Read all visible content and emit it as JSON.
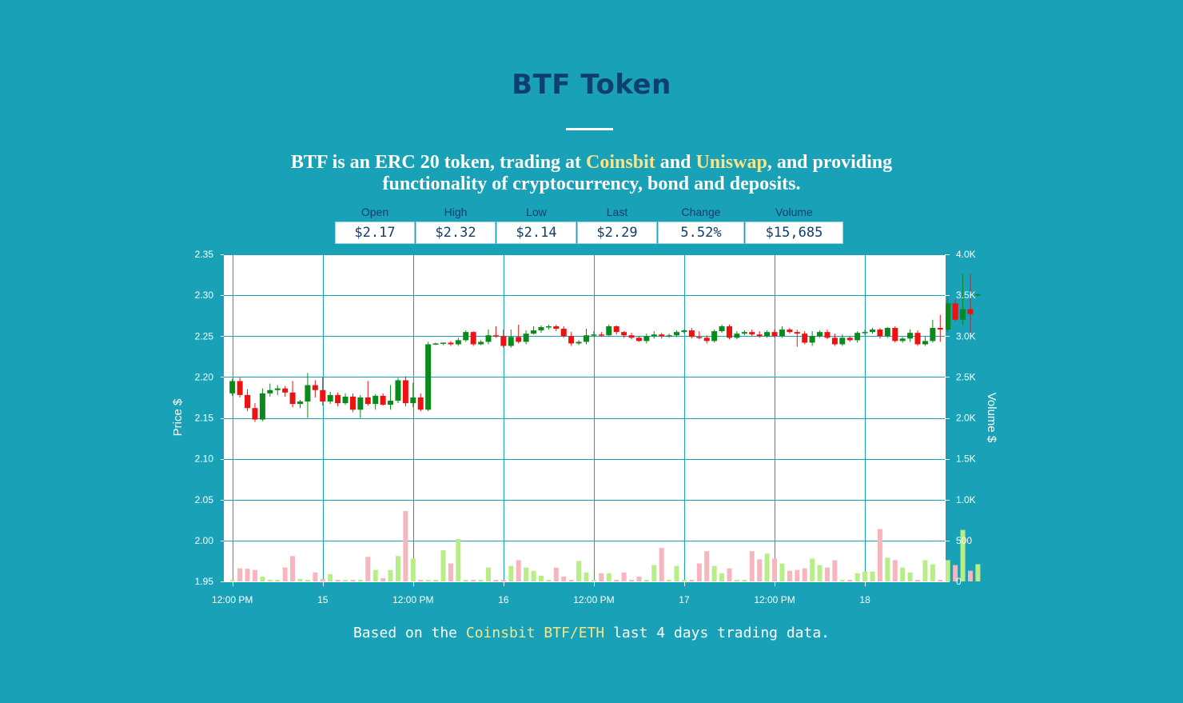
{
  "page": {
    "title": "BTF Token",
    "subtitle": {
      "line1_a": "BTF is an ERC 20 token, trading at ",
      "link1": "Coinsbit",
      "line1_b": " and ",
      "link2": "Uniswap",
      "line1_c": ", and providing",
      "line2": "functionality of cryptocurrency, bond and deposits."
    },
    "footer": {
      "pre": "Based on the ",
      "link": "Coinsbit BTF/ETH",
      "post": " last 4 days trading data."
    }
  },
  "stats": [
    {
      "label": "Open",
      "value": "$2.17"
    },
    {
      "label": "High",
      "value": "$2.32"
    },
    {
      "label": "Low",
      "value": "$2.14"
    },
    {
      "label": "Last",
      "value": "$2.29"
    },
    {
      "label": "Change",
      "value": "5.52%"
    },
    {
      "label": "Volume",
      "value": "$15,685"
    }
  ],
  "colors": {
    "background": "#19a1b8",
    "title": "#0f3f6e",
    "highlight": "#f7e58a",
    "up_candle": "#0a8a1a",
    "down_candle": "#ee1111",
    "up_volume": "#b8ee88",
    "down_volume": "#f7b5bd",
    "grid": "#19a1b8"
  },
  "chart_data": {
    "type": "candlestick",
    "ylabel": "Price $",
    "y2label": "Volume $",
    "ylim": [
      1.95,
      2.35
    ],
    "y_ticks": [
      "1.95",
      "2.00",
      "2.05",
      "2.10",
      "2.15",
      "2.20",
      "2.25",
      "2.30",
      "2.35"
    ],
    "y2lim": [
      0,
      4000
    ],
    "y2_ticks": [
      "0",
      "500",
      "1.0K",
      "1.5K",
      "2.0K",
      "2.5K",
      "3.0K",
      "3.5K",
      "4.0K"
    ],
    "x_ticks": [
      "12:00 PM",
      "15",
      "12:00 PM",
      "16",
      "12:00 PM",
      "17",
      "12:00 PM",
      "18"
    ],
    "x_tick_positions": [
      0,
      12,
      24,
      36,
      48,
      60,
      72,
      84
    ],
    "x_range": [
      -0.5,
      94.5
    ],
    "grid": true,
    "candles": [
      [
        0,
        2.18,
        2.195,
        2.177,
        2.198,
        20
      ],
      [
        1,
        2.195,
        2.178,
        2.175,
        2.199,
        160
      ],
      [
        2,
        2.178,
        2.162,
        2.158,
        2.185,
        155
      ],
      [
        3,
        2.162,
        2.148,
        2.145,
        2.168,
        140
      ],
      [
        4,
        2.148,
        2.18,
        2.146,
        2.186,
        60
      ],
      [
        5,
        2.18,
        2.184,
        2.176,
        2.192,
        20
      ],
      [
        6,
        2.184,
        2.186,
        2.178,
        2.19,
        20
      ],
      [
        7,
        2.186,
        2.181,
        2.176,
        2.189,
        170
      ],
      [
        8,
        2.181,
        2.167,
        2.163,
        2.195,
        310
      ],
      [
        9,
        2.167,
        2.17,
        2.162,
        2.172,
        30
      ],
      [
        10,
        2.17,
        2.19,
        2.15,
        2.205,
        20
      ],
      [
        11,
        2.19,
        2.184,
        2.175,
        2.196,
        110
      ],
      [
        12,
        2.184,
        2.17,
        2.165,
        2.2,
        30
      ],
      [
        13,
        2.17,
        2.178,
        2.167,
        2.182,
        90
      ],
      [
        14,
        2.178,
        2.168,
        2.164,
        2.181,
        20
      ],
      [
        15,
        2.168,
        2.176,
        2.166,
        2.18,
        20
      ],
      [
        16,
        2.176,
        2.16,
        2.157,
        2.18,
        20
      ],
      [
        17,
        2.16,
        2.175,
        2.15,
        2.178,
        20
      ],
      [
        18,
        2.175,
        2.167,
        2.165,
        2.195,
        300
      ],
      [
        19,
        2.167,
        2.177,
        2.16,
        2.179,
        140
      ],
      [
        20,
        2.177,
        2.166,
        2.165,
        2.18,
        40
      ],
      [
        21,
        2.166,
        2.171,
        2.16,
        2.19,
        140
      ],
      [
        22,
        2.171,
        2.196,
        2.168,
        2.199,
        310
      ],
      [
        23,
        2.196,
        2.168,
        2.164,
        2.201,
        860
      ],
      [
        24,
        2.168,
        2.175,
        2.163,
        2.193,
        280
      ],
      [
        25,
        2.175,
        2.16,
        2.158,
        2.18,
        20
      ],
      [
        26,
        2.16,
        2.24,
        2.158,
        2.243,
        20
      ],
      [
        27,
        2.24,
        2.241,
        2.239,
        2.242,
        20
      ],
      [
        28,
        2.241,
        2.242,
        2.239,
        2.242,
        380
      ],
      [
        29,
        2.242,
        2.24,
        2.238,
        2.244,
        220
      ],
      [
        30,
        2.24,
        2.245,
        2.238,
        2.248,
        520
      ],
      [
        31,
        2.245,
        2.255,
        2.243,
        2.257,
        20
      ],
      [
        32,
        2.255,
        2.24,
        2.238,
        2.256,
        20
      ],
      [
        33,
        2.24,
        2.243,
        2.239,
        2.245,
        20
      ],
      [
        34,
        2.243,
        2.251,
        2.24,
        2.258,
        170
      ],
      [
        35,
        2.251,
        2.25,
        2.248,
        2.262,
        20
      ],
      [
        36,
        2.25,
        2.238,
        2.236,
        2.258,
        20
      ],
      [
        37,
        2.238,
        2.249,
        2.236,
        2.258,
        190
      ],
      [
        38,
        2.249,
        2.243,
        2.241,
        2.264,
        260
      ],
      [
        39,
        2.243,
        2.253,
        2.24,
        2.257,
        170
      ],
      [
        40,
        2.253,
        2.257,
        2.252,
        2.262,
        130
      ],
      [
        41,
        2.257,
        2.261,
        2.254,
        2.263,
        70
      ],
      [
        42,
        2.261,
        2.262,
        2.258,
        2.264,
        20
      ],
      [
        43,
        2.262,
        2.259,
        2.256,
        2.264,
        170
      ],
      [
        44,
        2.259,
        2.25,
        2.248,
        2.262,
        60
      ],
      [
        45,
        2.25,
        2.241,
        2.238,
        2.255,
        20
      ],
      [
        46,
        2.241,
        2.243,
        2.239,
        2.245,
        250
      ],
      [
        47,
        2.243,
        2.251,
        2.24,
        2.259,
        110
      ],
      [
        48,
        2.251,
        2.252,
        2.249,
        2.256,
        20
      ],
      [
        49,
        2.252,
        2.251,
        2.249,
        2.255,
        100
      ],
      [
        50,
        2.251,
        2.262,
        2.25,
        2.264,
        100
      ],
      [
        51,
        2.262,
        2.255,
        2.252,
        2.263,
        20
      ],
      [
        52,
        2.255,
        2.251,
        2.248,
        2.256,
        110
      ],
      [
        53,
        2.251,
        2.248,
        2.246,
        2.254,
        20
      ],
      [
        54,
        2.248,
        2.244,
        2.243,
        2.25,
        60
      ],
      [
        55,
        2.244,
        2.25,
        2.241,
        2.253,
        20
      ],
      [
        56,
        2.25,
        2.252,
        2.247,
        2.256,
        200
      ],
      [
        57,
        2.252,
        2.25,
        2.247,
        2.254,
        410
      ],
      [
        58,
        2.25,
        2.251,
        2.248,
        2.253,
        20
      ],
      [
        59,
        2.251,
        2.255,
        2.249,
        2.257,
        190
      ],
      [
        60,
        2.255,
        2.257,
        2.253,
        2.258,
        20
      ],
      [
        61,
        2.257,
        2.249,
        2.247,
        2.26,
        20
      ],
      [
        62,
        2.249,
        2.248,
        2.246,
        2.256,
        220
      ],
      [
        63,
        2.248,
        2.244,
        2.241,
        2.251,
        370
      ],
      [
        64,
        2.244,
        2.256,
        2.242,
        2.258,
        190
      ],
      [
        65,
        2.256,
        2.262,
        2.254,
        2.264,
        100
      ],
      [
        66,
        2.262,
        2.248,
        2.246,
        2.264,
        160
      ],
      [
        67,
        2.248,
        2.253,
        2.246,
        2.256,
        20
      ],
      [
        68,
        2.253,
        2.255,
        2.251,
        2.257,
        20
      ],
      [
        69,
        2.255,
        2.252,
        2.25,
        2.258,
        370
      ],
      [
        70,
        2.252,
        2.25,
        2.248,
        2.256,
        270
      ],
      [
        71,
        2.25,
        2.255,
        2.248,
        2.257,
        340
      ],
      [
        72,
        2.255,
        2.25,
        2.248,
        2.258,
        280
      ],
      [
        73,
        2.25,
        2.258,
        2.248,
        2.262,
        220
      ],
      [
        74,
        2.258,
        2.255,
        2.253,
        2.26,
        130
      ],
      [
        75,
        2.255,
        2.253,
        2.237,
        2.258,
        140
      ],
      [
        76,
        2.253,
        2.242,
        2.24,
        2.256,
        160
      ],
      [
        77,
        2.242,
        2.25,
        2.238,
        2.256,
        280
      ],
      [
        78,
        2.25,
        2.255,
        2.248,
        2.257,
        200
      ],
      [
        79,
        2.255,
        2.248,
        2.246,
        2.258,
        170
      ],
      [
        80,
        2.248,
        2.24,
        2.238,
        2.253,
        260
      ],
      [
        81,
        2.24,
        2.248,
        2.238,
        2.252,
        20
      ],
      [
        82,
        2.248,
        2.245,
        2.243,
        2.25,
        20
      ],
      [
        83,
        2.245,
        2.254,
        2.242,
        2.256,
        100
      ],
      [
        84,
        2.254,
        2.255,
        2.251,
        2.258,
        120
      ],
      [
        85,
        2.255,
        2.258,
        2.253,
        2.26,
        120
      ],
      [
        86,
        2.258,
        2.25,
        2.247,
        2.26,
        640
      ],
      [
        87,
        2.25,
        2.26,
        2.248,
        2.261,
        290
      ],
      [
        88,
        2.26,
        2.244,
        2.242,
        2.262,
        260
      ],
      [
        89,
        2.244,
        2.247,
        2.242,
        2.249,
        170
      ],
      [
        90,
        2.247,
        2.254,
        2.243,
        2.258,
        110
      ],
      [
        91,
        2.254,
        2.24,
        2.238,
        2.257,
        20
      ],
      [
        92,
        2.24,
        2.244,
        2.238,
        2.25,
        260
      ],
      [
        93,
        2.244,
        2.26,
        2.242,
        2.27,
        210
      ],
      [
        94,
        2.26,
        2.258,
        2.243,
        2.276,
        20
      ],
      [
        95,
        2.258,
        2.29,
        2.255,
        2.298,
        260
      ],
      [
        96,
        2.29,
        2.27,
        2.268,
        2.295,
        200
      ],
      [
        97,
        2.27,
        2.283,
        2.263,
        2.326,
        630
      ],
      [
        98,
        2.283,
        2.277,
        2.253,
        2.326,
        130
      ],
      [
        99,
        2.3,
        2.301,
        2.299,
        2.302,
        210
      ]
    ]
  }
}
